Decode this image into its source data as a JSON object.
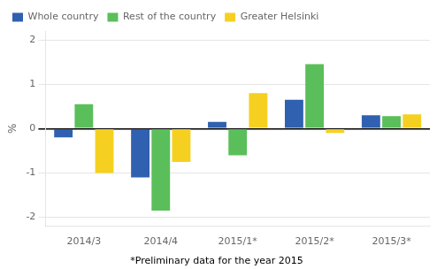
{
  "chart_data": {
    "type": "bar",
    "categories": [
      "2014/3",
      "2014/4",
      "2015/1*",
      "2015/2*",
      "2015/3*"
    ],
    "series": [
      {
        "name": "Whole country",
        "color": "#3060b0",
        "values": [
          -0.2,
          -1.1,
          0.15,
          0.65,
          0.3
        ]
      },
      {
        "name": "Rest of the country",
        "color": "#5abf5a",
        "values": [
          0.55,
          -1.85,
          -0.6,
          1.45,
          0.28
        ]
      },
      {
        "name": "Greater Helsinki",
        "color": "#f5d020",
        "values": [
          -1.0,
          -0.75,
          0.8,
          -0.1,
          0.32
        ]
      }
    ],
    "y_label": "%",
    "annotations": [
      "*Preliminary data for the year 2015"
    ],
    "ylim": [
      -2.2,
      2.2
    ],
    "yticks": [
      -2,
      -1,
      0,
      1,
      2
    ],
    "grid": true,
    "legend": "upper left"
  }
}
